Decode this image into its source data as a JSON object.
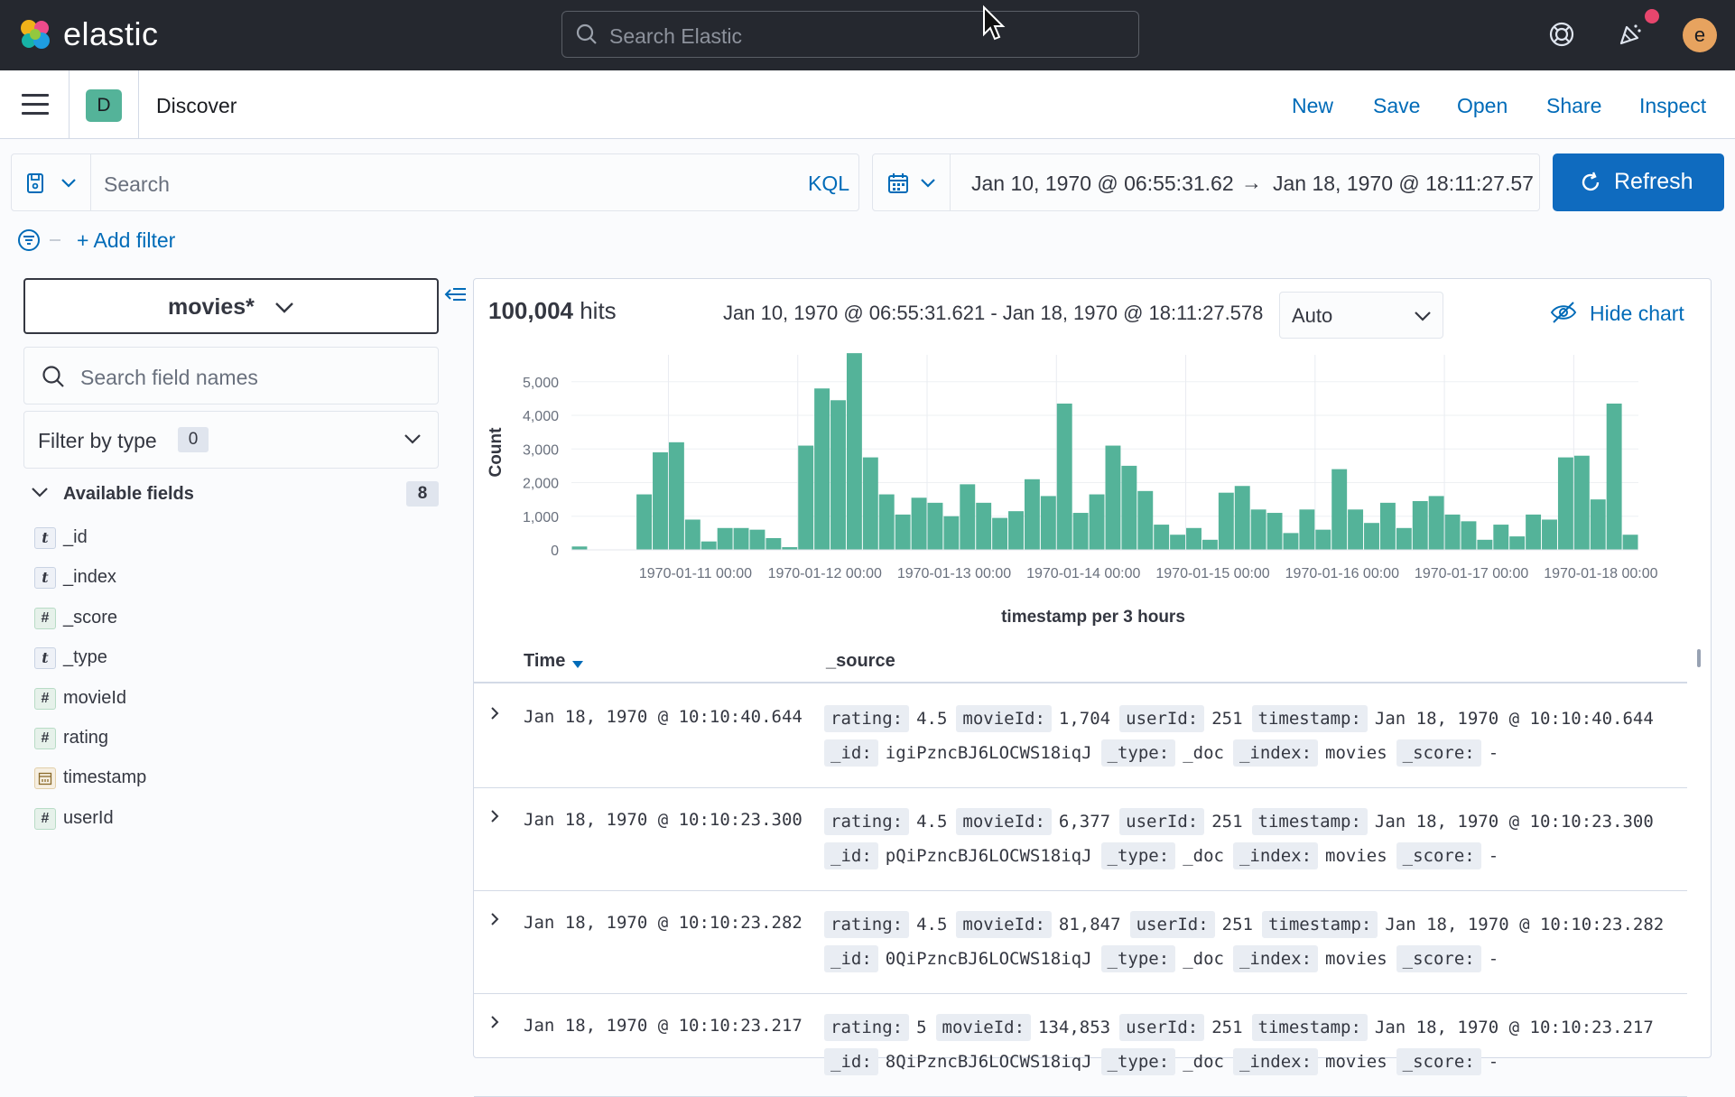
{
  "header": {
    "logo_text": "elastic",
    "search_placeholder": "Search Elastic",
    "avatar_initial": "e"
  },
  "subheader": {
    "space_initial": "D",
    "title": "Discover",
    "links": [
      "New",
      "Save",
      "Open",
      "Share",
      "Inspect"
    ]
  },
  "query": {
    "placeholder": "Search",
    "language": "KQL",
    "date_start": "Jan 10, 1970 @ 06:55:31.62",
    "date_arrow": "→",
    "date_end": "Jan 18, 1970 @ 18:11:27.57",
    "refresh_label": "Refresh",
    "add_filter_label": "+ Add filter"
  },
  "sidebar": {
    "index_pattern": "movies*",
    "field_search_placeholder": "Search field names",
    "filter_by_type_label": "Filter by type",
    "filter_by_type_count": "0",
    "available_fields_label": "Available fields",
    "available_fields_count": "8",
    "fields": [
      {
        "name": "_id",
        "type": "string",
        "type_glyph": "t"
      },
      {
        "name": "_index",
        "type": "string",
        "type_glyph": "t"
      },
      {
        "name": "_score",
        "type": "number",
        "type_glyph": "#"
      },
      {
        "name": "_type",
        "type": "string",
        "type_glyph": "t"
      },
      {
        "name": "movieId",
        "type": "number",
        "type_glyph": "#"
      },
      {
        "name": "rating",
        "type": "number",
        "type_glyph": "#"
      },
      {
        "name": "timestamp",
        "type": "date",
        "type_glyph": "date"
      },
      {
        "name": "userId",
        "type": "number",
        "type_glyph": "#"
      }
    ]
  },
  "results": {
    "hits_count": "100,004",
    "hits_label": "hits",
    "range_label": "Jan 10, 1970 @ 06:55:31.621 - Jan 18, 1970 @ 18:11:27.578",
    "interval": "Auto",
    "hide_chart_label": "Hide chart",
    "columns": {
      "time": "Time",
      "source": "_source"
    },
    "rows": [
      {
        "time": "Jan 18, 1970 @ 10:10:40.644",
        "fields_line1": [
          [
            "rating:",
            "4.5"
          ],
          [
            "movieId:",
            "1,704"
          ],
          [
            "userId:",
            "251"
          ],
          [
            "timestamp:",
            "Jan 18, 1970 @ 10:10:40.644"
          ]
        ],
        "fields_line2": [
          [
            "_id:",
            "igiPzncBJ6LOCWS18iqJ"
          ],
          [
            "_type:",
            "_doc"
          ],
          [
            "_index:",
            "movies"
          ],
          [
            "_score:",
            "-"
          ]
        ]
      },
      {
        "time": "Jan 18, 1970 @ 10:10:23.300",
        "fields_line1": [
          [
            "rating:",
            "4.5"
          ],
          [
            "movieId:",
            "6,377"
          ],
          [
            "userId:",
            "251"
          ],
          [
            "timestamp:",
            "Jan 18, 1970 @ 10:10:23.300"
          ]
        ],
        "fields_line2": [
          [
            "_id:",
            "pQiPzncBJ6LOCWS18iqJ"
          ],
          [
            "_type:",
            "_doc"
          ],
          [
            "_index:",
            "movies"
          ],
          [
            "_score:",
            "-"
          ]
        ]
      },
      {
        "time": "Jan 18, 1970 @ 10:10:23.282",
        "fields_line1": [
          [
            "rating:",
            "4.5"
          ],
          [
            "movieId:",
            "81,847"
          ],
          [
            "userId:",
            "251"
          ],
          [
            "timestamp:",
            "Jan 18, 1970 @ 10:10:23.282"
          ]
        ],
        "fields_line2": [
          [
            "_id:",
            "0QiPzncBJ6LOCWS18iqJ"
          ],
          [
            "_type:",
            "_doc"
          ],
          [
            "_index:",
            "movies"
          ],
          [
            "_score:",
            "-"
          ]
        ]
      },
      {
        "time": "Jan 18, 1970 @ 10:10:23.217",
        "fields_line1": [
          [
            "rating:",
            "5"
          ],
          [
            "movieId:",
            "134,853"
          ],
          [
            "userId:",
            "251"
          ],
          [
            "timestamp:",
            "Jan 18, 1970 @ 10:10:23.217"
          ]
        ],
        "fields_line2": [
          [
            "_id:",
            "8QiPzncBJ6LOCWS18iqJ"
          ],
          [
            "_type:",
            "_doc"
          ],
          [
            "_index:",
            "movies"
          ],
          [
            "_score:",
            "-"
          ]
        ]
      }
    ]
  },
  "colors": {
    "bar": "#54b399",
    "accent": "#006bb8",
    "header_bg": "#25282f"
  },
  "chart_data": {
    "type": "bar",
    "xlabel": "timestamp per 3 hours",
    "ylabel": "Count",
    "ylim": [
      0,
      5800
    ],
    "yticks": [
      0,
      1000,
      2000,
      3000,
      4000,
      5000
    ],
    "ytick_labels": [
      "0",
      "1,000",
      "2,000",
      "3,000",
      "4,000",
      "5,000"
    ],
    "x_tick_labels": [
      "1970-01-11 00:00",
      "1970-01-12 00:00",
      "1970-01-13 00:00",
      "1970-01-14 00:00",
      "1970-01-15 00:00",
      "1970-01-16 00:00",
      "1970-01-17 00:00",
      "1970-01-18 00:00"
    ],
    "bin_hours": 3,
    "grid": true,
    "series": [
      {
        "values": [
          100,
          0,
          0,
          0,
          1650,
          2900,
          3200,
          900,
          250,
          650,
          650,
          600,
          350,
          80,
          3100,
          4800,
          4450,
          5850,
          2750,
          1650,
          1050,
          1550,
          1400,
          1000,
          1950,
          1400,
          950,
          1150,
          2100,
          1600,
          4350,
          1100,
          1650,
          3100,
          2500,
          1750,
          750,
          450,
          650,
          300,
          1700,
          1900,
          1200,
          1100,
          500,
          1200,
          600,
          2400,
          1200,
          800,
          1400,
          650,
          1450,
          1600,
          1050,
          850,
          300,
          750,
          400,
          1050,
          900,
          2750,
          2800,
          1500,
          4350,
          450
        ]
      }
    ]
  }
}
